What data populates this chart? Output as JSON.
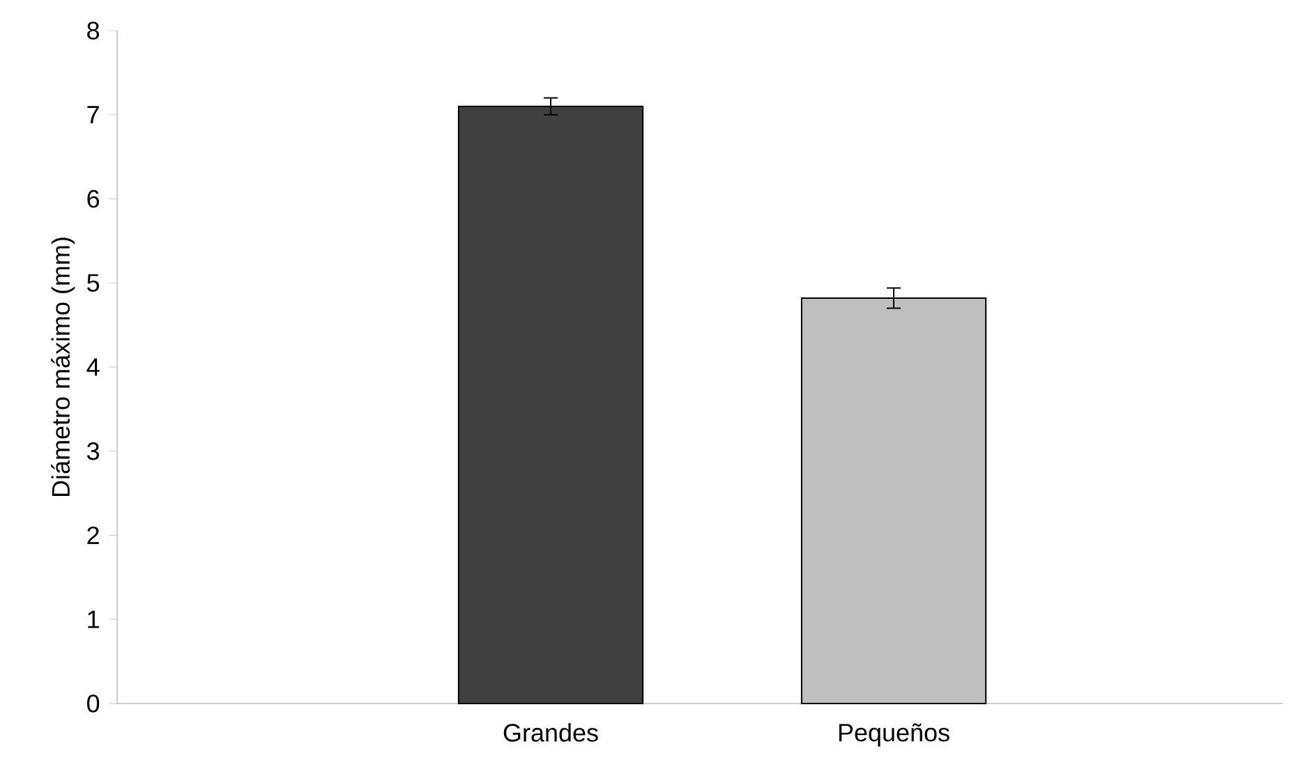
{
  "chart_data": {
    "type": "bar",
    "ylabel": "Diámetro máximo (mm)",
    "categories": [
      "Grandes",
      "Pequeños"
    ],
    "values": [
      7.1,
      4.82
    ],
    "errors": [
      0.1,
      0.12
    ],
    "colors": [
      "#404040",
      "#bfbfbf"
    ],
    "ylim": [
      0,
      8
    ],
    "yticks": [
      0,
      1,
      2,
      3,
      4,
      5,
      6,
      7,
      8
    ],
    "grid": false
  }
}
